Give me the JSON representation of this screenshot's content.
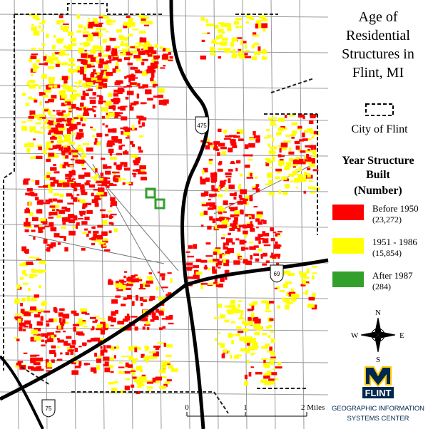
{
  "title_lines": [
    "Age of",
    "Residential",
    "Structures in",
    "Flint, MI"
  ],
  "boundary_label": "City of Flint",
  "legend": {
    "heading_lines": [
      "Year Structure",
      "Built",
      "(Number)"
    ],
    "items": [
      {
        "label": "Before 1950",
        "count": "(23,272)",
        "color": "#ff0000"
      },
      {
        "label": "1951 - 1986",
        "count": "(15,854)",
        "color": "#ffff00"
      },
      {
        "label": "After 1987",
        "count": "(284)",
        "color": "#33a02c"
      }
    ]
  },
  "highways": [
    "475",
    "69",
    "75"
  ],
  "compass": {
    "n": "N",
    "e": "E",
    "s": "S",
    "w": "W"
  },
  "scale": [
    "0",
    "1",
    "2 Miles"
  ],
  "logo": {
    "name": "FLINT",
    "lines": [
      "GEOGRAPHIC INFORMATION",
      "SYSTEMS CENTER"
    ]
  }
}
